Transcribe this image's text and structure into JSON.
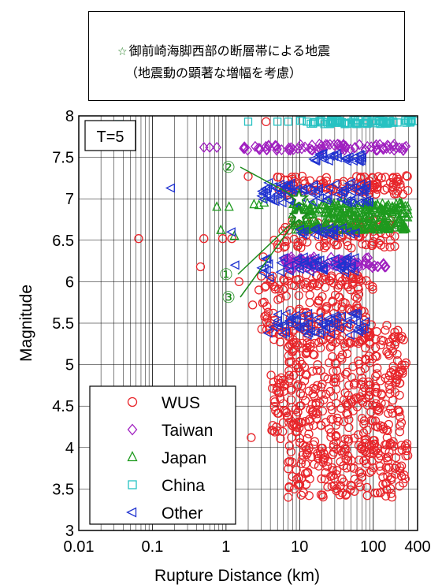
{
  "annotation": {
    "star_symbol": "☆",
    "line1": "御前崎海脚西部の断層帯による地震",
    "line2": "（地震動の顕著な増幅を考慮）"
  },
  "chart_data": {
    "type": "scatter",
    "title": "",
    "panel_label": "T=5",
    "xlabel": "Rupture Distance (km)",
    "ylabel": "Magnitude",
    "xscale": "log",
    "xlim": [
      0.01,
      400
    ],
    "ylim": [
      3,
      8
    ],
    "grid": true,
    "x_ticks": [
      "0.01",
      "0.1",
      "1",
      "10",
      "100",
      "400"
    ],
    "y_ticks": [
      "3",
      "3.5",
      "4",
      "4.5",
      "5",
      "5.5",
      "6",
      "6.5",
      "7",
      "7.5",
      "8"
    ],
    "legend_position": "bottom-left",
    "series": [
      {
        "name": "WUS",
        "marker": "circle",
        "color": "#e8252a",
        "points": [
          [
            0.065,
            6.52
          ],
          [
            0.45,
            6.18
          ],
          [
            0.5,
            6.52
          ],
          [
            0.9,
            6.52
          ],
          [
            1.2,
            6.52
          ],
          [
            1.5,
            6.0
          ],
          [
            2.0,
            7.27
          ],
          [
            2.2,
            4.12
          ],
          [
            2.3,
            5.72
          ],
          [
            3.5,
            7.93
          ],
          [
            4.0,
            6.0
          ],
          [
            5.0,
            4.2
          ],
          [
            6.0,
            4.3
          ],
          [
            7.0,
            3.4
          ],
          [
            2.8,
            5.9
          ],
          [
            3.2,
            6.3
          ],
          [
            5.5,
            5.8
          ],
          [
            8.0,
            3.65
          ],
          [
            4.5,
            6.5
          ],
          [
            6.5,
            5.4
          ],
          [
            9.0,
            5.0
          ],
          [
            10.0,
            4.5
          ]
        ],
        "clusters": [
          {
            "x": [
              5,
              300
            ],
            "y": [
              7.05,
              7.28
            ],
            "n": 110
          },
          {
            "x": [
              5,
              200
            ],
            "y": [
              6.4,
              6.75
            ],
            "n": 100
          },
          {
            "x": [
              3,
              100
            ],
            "y": [
              5.9,
              6.1
            ],
            "n": 70
          },
          {
            "x": [
              3,
              80
            ],
            "y": [
              5.25,
              5.85
            ],
            "n": 110
          },
          {
            "x": [
              7,
              300
            ],
            "y": [
              4.9,
              5.5
            ],
            "n": 140
          },
          {
            "x": [
              4,
              250
            ],
            "y": [
              4.1,
              4.9
            ],
            "n": 240
          },
          {
            "x": [
              7,
              300
            ],
            "y": [
              3.4,
              4.1
            ],
            "n": 200
          }
        ]
      },
      {
        "name": "Taiwan",
        "marker": "diamond",
        "color": "#a020c0",
        "points": [
          [
            0.5,
            7.62
          ],
          [
            0.6,
            7.62
          ],
          [
            0.75,
            7.62
          ]
        ],
        "clusters": [
          {
            "x": [
              1.6,
              300
            ],
            "y": [
              7.58,
              7.66
            ],
            "n": 90
          },
          {
            "x": [
              6,
              150
            ],
            "y": [
              6.15,
              6.3
            ],
            "n": 90
          }
        ]
      },
      {
        "name": "Japan",
        "marker": "triangle-up",
        "color": "#1e9a1e",
        "points": [
          [
            0.75,
            6.9
          ],
          [
            0.85,
            6.62
          ],
          [
            1.1,
            6.9
          ],
          [
            1.3,
            6.55
          ],
          [
            2.4,
            6.93
          ],
          [
            2.8,
            6.92
          ],
          [
            3.3,
            6.95
          ]
        ],
        "clusters": [
          {
            "x": [
              8,
              300
            ],
            "y": [
              6.75,
              6.95
            ],
            "n": 180
          },
          {
            "x": [
              8,
              300
            ],
            "y": [
              6.62,
              6.72
            ],
            "n": 120
          }
        ]
      },
      {
        "name": "China",
        "marker": "square",
        "color": "#27c2c2",
        "points": [
          [
            0.035,
            7.9
          ],
          [
            2.0,
            7.93
          ],
          [
            5.0,
            7.93
          ],
          [
            7.0,
            7.93
          ]
        ],
        "clusters": [
          {
            "x": [
              10,
              380
            ],
            "y": [
              7.9,
              7.95
            ],
            "n": 80
          }
        ]
      },
      {
        "name": "Other",
        "marker": "triangle-left",
        "color": "#2033d0",
        "points": [
          [
            0.18,
            7.13
          ],
          [
            1.2,
            6.6
          ],
          [
            1.35,
            6.2
          ],
          [
            3.5,
            7.12
          ],
          [
            4.0,
            6.05
          ],
          [
            3.8,
            5.38
          ],
          [
            4.5,
            5.45
          ],
          [
            5.0,
            5.5
          ]
        ],
        "clusters": [
          {
            "x": [
              15,
              80
            ],
            "y": [
              7.45,
              7.55
            ],
            "n": 30
          },
          {
            "x": [
              3,
              100
            ],
            "y": [
              6.95,
              7.2
            ],
            "n": 80
          },
          {
            "x": [
              10,
              60
            ],
            "y": [
              6.55,
              6.65
            ],
            "n": 25
          },
          {
            "x": [
              3,
              60
            ],
            "y": [
              6.1,
              6.3
            ],
            "n": 50
          },
          {
            "x": [
              5,
              80
            ],
            "y": [
              5.35,
              5.62
            ],
            "n": 60
          }
        ]
      }
    ],
    "highlighted_events": [
      {
        "label": "①",
        "x": 9.8,
        "y": 6.79
      },
      {
        "label": "②",
        "x": 9.8,
        "y": 7.0
      },
      {
        "label": "③",
        "x": 9.8,
        "y": 6.79
      }
    ]
  }
}
